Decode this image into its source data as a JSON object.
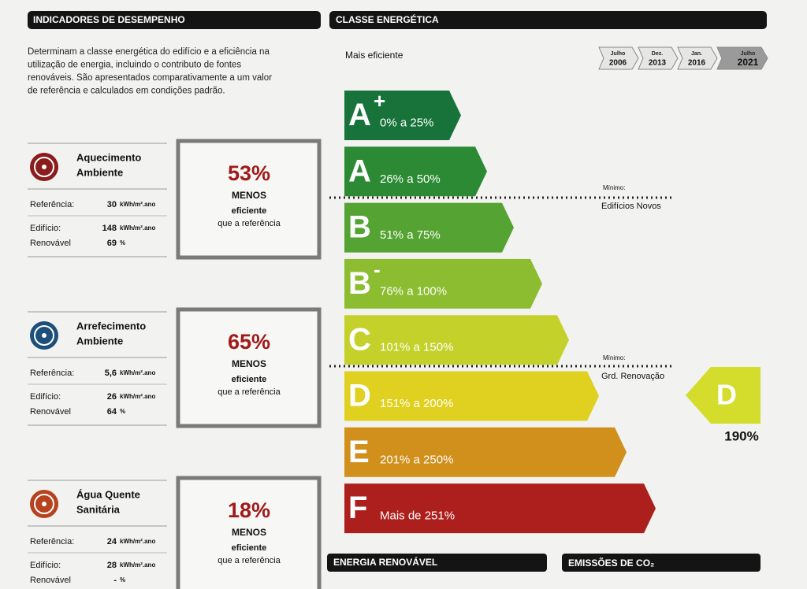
{
  "left": {
    "header": "INDICADORES DE DESEMPENHO",
    "intro": [
      "Determinam a classe energética do edifício e a eficiência na",
      "utilização de energia, incluindo o contributo de fontes",
      "renováveis. São apresentados comparativamente a um valor",
      "de referência e calculados em condições padrão."
    ],
    "indicators": [
      {
        "title": [
          "Aquecimento",
          "Ambiente"
        ],
        "icon_color": "#8a1c1c",
        "rows": [
          {
            "label": "Referência:",
            "value": "30",
            "unit": "kWh/m².ano"
          },
          {
            "label": "Edifício:",
            "value": "148",
            "unit": "kWh/m².ano"
          },
          {
            "label": "Renovável",
            "value": "69",
            "unit": "%"
          }
        ],
        "percent": "53%",
        "text": [
          "MENOS",
          "eficiente",
          "que a referência"
        ]
      },
      {
        "title": [
          "Arrefecimento",
          "Ambiente"
        ],
        "icon_color": "#1e4f7a",
        "rows": [
          {
            "label": "Referência:",
            "value": "5,6",
            "unit": "kWh/m².ano"
          },
          {
            "label": "Edifício:",
            "value": "26",
            "unit": "kWh/m².ano"
          },
          {
            "label": "Renovável",
            "value": "64",
            "unit": "%"
          }
        ],
        "percent": "65%",
        "text": [
          "MENOS",
          "eficiente",
          "que a referência"
        ]
      },
      {
        "title": [
          "Água Quente",
          "Sanitária"
        ],
        "icon_color": "#b8421e",
        "rows": [
          {
            "label": "Referência:",
            "value": "24",
            "unit": "kWh/m².ano"
          },
          {
            "label": "Edifício:",
            "value": "28",
            "unit": "kWh/m².ano"
          },
          {
            "label": "Renovável",
            "value": "-",
            "unit": "%"
          }
        ],
        "percent": "18%",
        "text": [
          "MENOS",
          "eficiente",
          "que a referência"
        ]
      }
    ]
  },
  "right": {
    "header": "CLASSE ENERGÉTICA",
    "top_label": "Mais eficiente",
    "dates": [
      [
        "Julho",
        "2006"
      ],
      [
        "Dez.",
        "2013"
      ],
      [
        "Jan.",
        "2016"
      ],
      [
        "Julho",
        "2021"
      ]
    ],
    "classes": [
      {
        "letter": "A",
        "sup": "+",
        "range": "0% a 25%",
        "color": "#17733a"
      },
      {
        "letter": "A",
        "range": "26% a 50%",
        "color": "#2b8a33"
      },
      {
        "letter": "B",
        "range": "51% a 75%",
        "color": "#55a332"
      },
      {
        "letter": "B",
        "sup": "-",
        "range": "76% a 100%",
        "color": "#8cbd30"
      },
      {
        "letter": "C",
        "range": "101% a 150%",
        "color": "#c4d12a"
      },
      {
        "letter": "D",
        "range": "151% a 200%",
        "color": "#e0d020"
      },
      {
        "letter": "E",
        "range": "201% a 250%",
        "color": "#d1901c"
      },
      {
        "letter": "F",
        "range": "Mais de 251%",
        "color": "#ad1f1c"
      }
    ],
    "minimums": [
      [
        "Mínimo:",
        "Edifícios Novos"
      ],
      [
        "Mínimo:",
        "Grd. Renovação"
      ]
    ],
    "result": {
      "letter": "D",
      "value": "190%",
      "color": "#d4dc2c"
    },
    "footer": [
      "ENERGIA RENOVÁVEL",
      "EMISSÕES DE CO₂"
    ]
  }
}
